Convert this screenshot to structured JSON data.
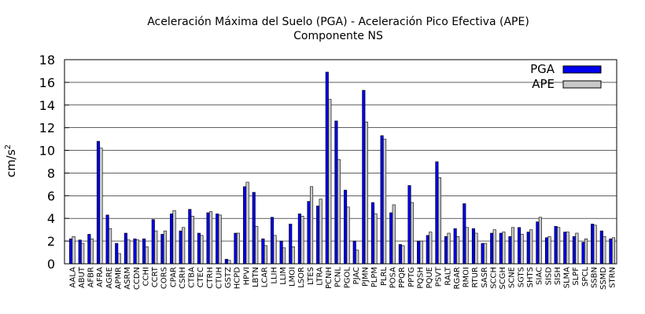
{
  "chart_data": {
    "type": "bar",
    "title_line1": "Aceleración Máxima del Suelo (PGA) -   Aceleración Pico Efectiva (APE)",
    "title_line2": "Componente NS",
    "ylabel_main": "cm/s",
    "ylabel_sup": "2",
    "xlabel": "",
    "ylim": [
      0,
      18
    ],
    "yticks": [
      0,
      2,
      4,
      6,
      8,
      10,
      12,
      14,
      16,
      18
    ],
    "grid": false,
    "legend_position": "top-right",
    "colors": {
      "PGA": "#0000ee",
      "APE": "#c8c8c8",
      "grid": "#000000"
    },
    "categories": [
      "AALA",
      "ABUT",
      "AFBR",
      "AFRA",
      "AGRE",
      "APMR",
      "ASRM",
      "CCDN",
      "CCHI",
      "CCRT",
      "CORS",
      "CPAR",
      "CSRH",
      "CTBA",
      "CTEC",
      "CTRH",
      "CTUH",
      "GSTZ",
      "HCPD",
      "HPVI",
      "LBTN",
      "LCAR",
      "LLIH",
      "LLIM",
      "LMOI",
      "LSOR",
      "LTES",
      "LTRA",
      "PCNH",
      "PCNL",
      "PGOL",
      "PJAC",
      "PJMN",
      "PLPM",
      "PLRL",
      "POSA",
      "PPQR",
      "PPTG",
      "PQSH",
      "PQUE",
      "PSVT",
      "RALT",
      "RGAR",
      "RMOI",
      "RTUR",
      "SASR",
      "SCCH",
      "SCGH",
      "SCNE",
      "SGTS",
      "SHTS",
      "SIAC",
      "SISD",
      "SISH",
      "SLMA",
      "SLPF",
      "SPCL",
      "SSBN",
      "SSMD",
      "STRN"
    ],
    "series": [
      {
        "name": "PGA",
        "values": [
          2.2,
          2.1,
          2.6,
          10.8,
          4.3,
          1.8,
          2.7,
          2.2,
          2.2,
          3.9,
          2.6,
          4.4,
          2.9,
          4.8,
          2.7,
          4.5,
          4.4,
          0.4,
          2.7,
          6.8,
          6.3,
          2.2,
          4.1,
          2.0,
          3.5,
          4.4,
          5.5,
          5.1,
          16.9,
          12.6,
          6.5,
          2.0,
          15.3,
          5.4,
          11.3,
          4.5,
          1.7,
          6.9,
          2.0,
          2.5,
          9.0,
          2.4,
          3.1,
          5.3,
          3.1,
          1.8,
          2.7,
          2.7,
          2.4,
          3.2,
          2.8,
          3.7,
          2.3,
          3.3,
          2.8,
          2.4,
          1.9,
          3.5,
          2.9,
          2.2
        ]
      },
      {
        "name": "APE",
        "values": [
          2.4,
          1.8,
          2.2,
          10.2,
          3.1,
          0.9,
          2.1,
          2.1,
          1.5,
          2.9,
          2.9,
          4.7,
          3.2,
          4.2,
          2.5,
          4.6,
          4.3,
          0.3,
          2.7,
          7.2,
          3.3,
          1.6,
          2.5,
          1.4,
          1.5,
          4.2,
          6.8,
          5.7,
          14.5,
          9.2,
          5.0,
          1.2,
          12.5,
          4.4,
          11.0,
          5.2,
          1.6,
          5.4,
          2.0,
          2.8,
          7.6,
          2.7,
          2.4,
          3.2,
          2.7,
          1.8,
          3.0,
          2.8,
          3.2,
          2.6,
          3.0,
          4.1,
          2.4,
          3.2,
          2.8,
          2.7,
          2.2,
          3.4,
          2.4,
          2.3
        ]
      }
    ]
  }
}
